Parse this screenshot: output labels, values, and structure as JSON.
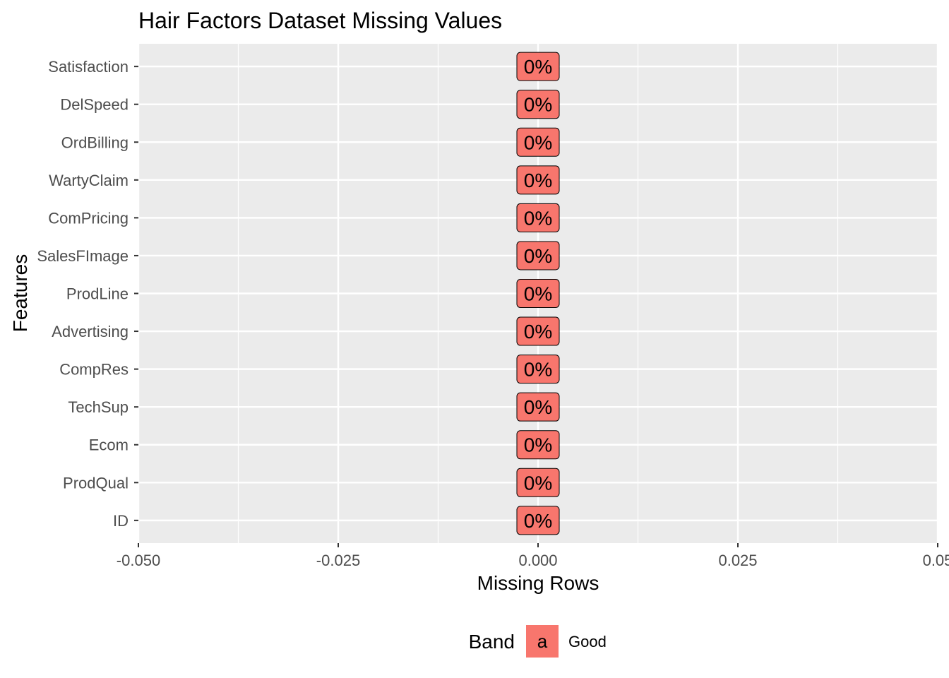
{
  "chart_data": {
    "type": "bar",
    "orientation": "horizontal",
    "title": "Hair Factors Dataset Missing Values",
    "xlabel": "Missing Rows",
    "ylabel": "Features",
    "categories": [
      "ID",
      "ProdQual",
      "Ecom",
      "TechSup",
      "CompRes",
      "Advertising",
      "ProdLine",
      "SalesFImage",
      "ComPricing",
      "WartyClaim",
      "OrdBilling",
      "DelSpeed",
      "Satisfaction"
    ],
    "values": [
      0,
      0,
      0,
      0,
      0,
      0,
      0,
      0,
      0,
      0,
      0,
      0,
      0
    ],
    "data_labels": [
      "0%",
      "0%",
      "0%",
      "0%",
      "0%",
      "0%",
      "0%",
      "0%",
      "0%",
      "0%",
      "0%",
      "0%",
      "0%"
    ],
    "xlim": [
      -0.05,
      0.05
    ],
    "xticks": [
      -0.05,
      -0.025,
      0,
      0.025,
      0.05
    ],
    "xtick_labels": [
      "-0.050",
      "-0.025",
      "0.000",
      "0.025",
      "0.05"
    ],
    "legend": {
      "title": "Band",
      "position": "bottom",
      "entries": [
        {
          "key_letter": "a",
          "label": "Good",
          "color": "#f8766d"
        }
      ]
    },
    "colors": {
      "panel": "#ebebeb",
      "grid": "#ffffff",
      "label_fill": "#f8766d"
    },
    "grid": true
  }
}
